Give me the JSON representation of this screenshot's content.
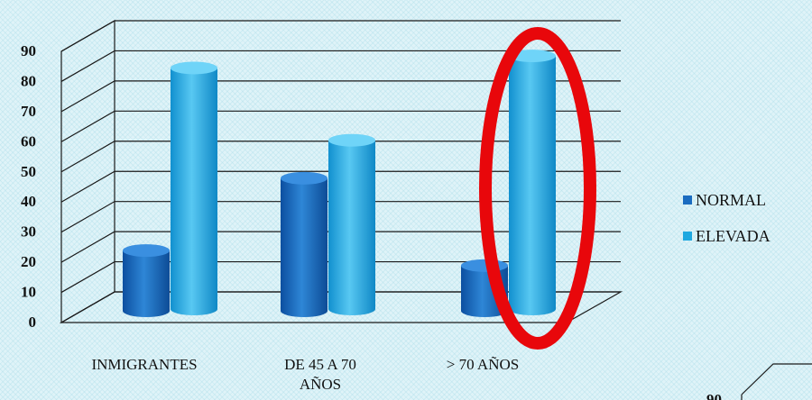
{
  "chart_data": {
    "type": "bar",
    "categories": [
      "INMIGRANTES",
      "DE 45 A 70 AÑOS",
      "> 70 AÑOS"
    ],
    "category_lines": [
      [
        "INMIGRANTES"
      ],
      [
        "DE 45 A 70",
        "AÑOS"
      ],
      [
        "> 70 AÑOS"
      ]
    ],
    "series": [
      {
        "name": "NORMAL",
        "values": [
          20,
          44,
          15
        ],
        "color": "#1a6cc0"
      },
      {
        "name": "ELEVADA",
        "values": [
          80,
          56,
          84
        ],
        "color": "#1ea8e0"
      }
    ],
    "ylim": [
      0,
      90
    ],
    "yticks": [
      "0",
      "10",
      "20",
      "30",
      "40",
      "50",
      "60",
      "70",
      "80",
      "90"
    ],
    "grid": true,
    "legend_position": "right",
    "three_d": true,
    "highlight": {
      "category": "> 70 AÑOS",
      "series": "ELEVADA",
      "color": "#e8070b",
      "shape": "ellipse"
    },
    "partial_next_chart_tick": "90"
  }
}
